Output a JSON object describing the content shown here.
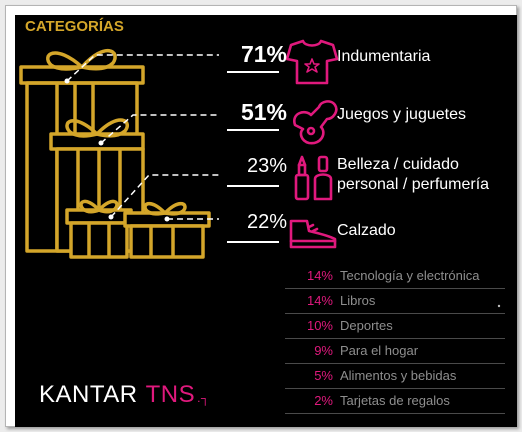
{
  "title": "CATEGORÍAS",
  "colors": {
    "gold": "#d4a62a",
    "pink": "#e0197d",
    "muted": "#8e8e8e"
  },
  "chart_data": {
    "type": "table",
    "top": [
      {
        "value": 71,
        "label": "71%",
        "category": "Indumentaria",
        "icon": "tshirt-icon"
      },
      {
        "value": 51,
        "label": "51%",
        "category": "Juegos y juguetes",
        "icon": "toy-icon"
      },
      {
        "value": 23,
        "label": "23%",
        "category": "Belleza / cuidado personal / perfumería",
        "lines": [
          "Belleza / cuidado",
          "personal / perfumería"
        ],
        "icon": "cosmetics-icon"
      },
      {
        "value": 22,
        "label": "22%",
        "category": "Calzado",
        "icon": "shoe-icon"
      }
    ],
    "others": [
      {
        "value": 14,
        "label": "14%",
        "category": "Tecnología y electrónica"
      },
      {
        "value": 14,
        "label": "14%",
        "category": "Libros"
      },
      {
        "value": 10,
        "label": "10%",
        "category": "Deportes"
      },
      {
        "value": 9,
        "label": "9%",
        "category": "Para el hogar"
      },
      {
        "value": 5,
        "label": "5%",
        "category": "Alimentos y bebidas"
      },
      {
        "value": 2,
        "label": "2%",
        "category": "Tarjetas de regalos"
      }
    ]
  },
  "brand": {
    "name": "KANTAR",
    "sub": "TNS",
    "mark": ".┐"
  }
}
